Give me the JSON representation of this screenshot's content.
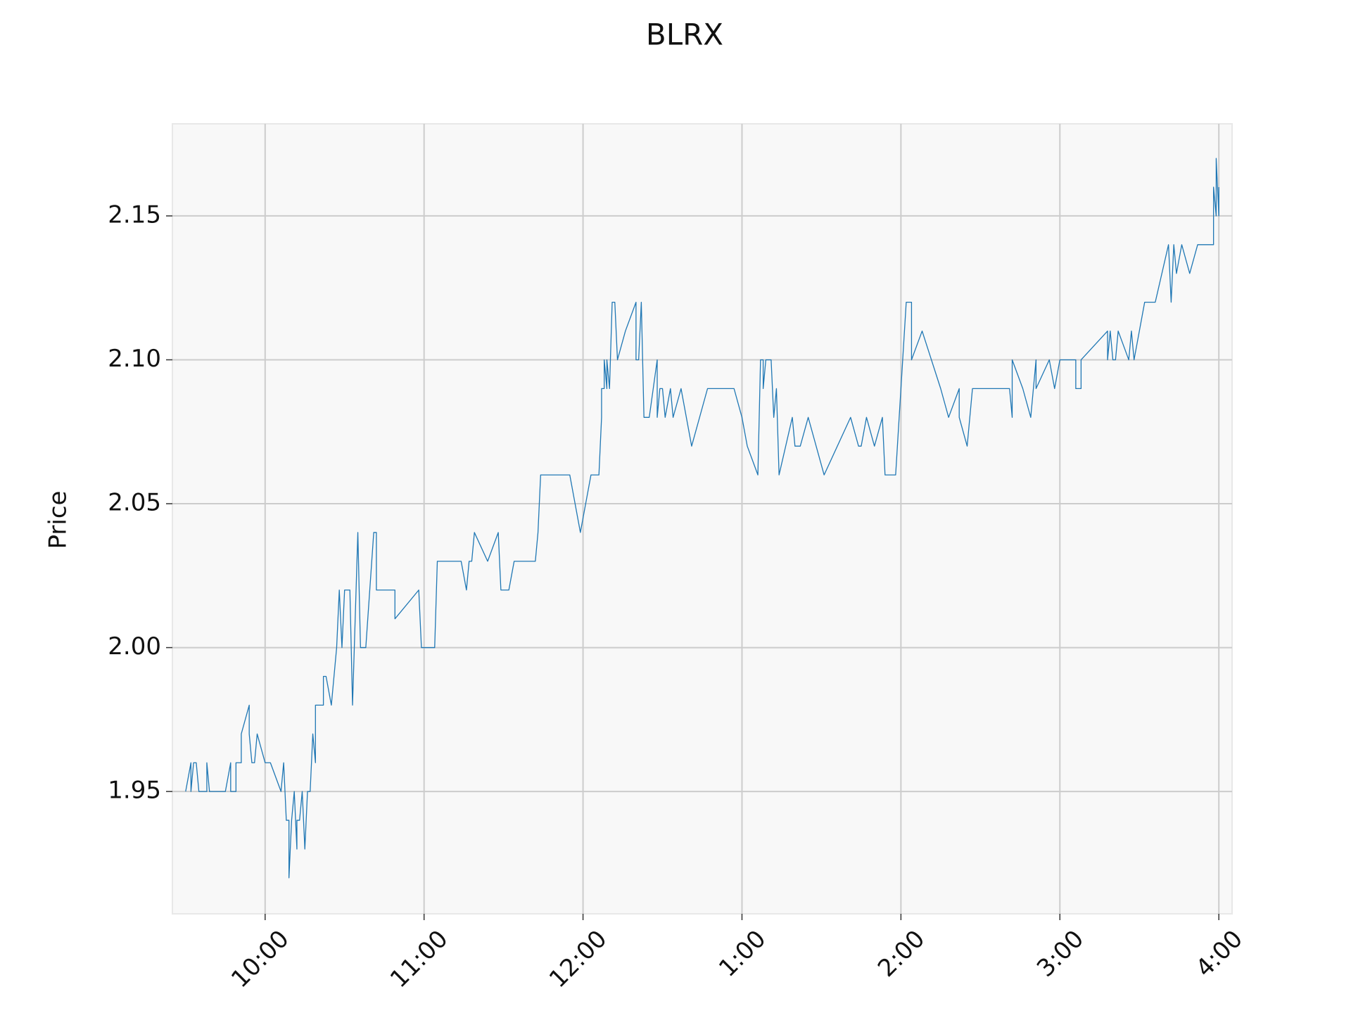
{
  "chart_data": {
    "type": "line",
    "title": "BLRX",
    "ylabel": "Price",
    "color": "#1f77b4",
    "grid": true,
    "x": [
      570,
      572,
      572,
      573,
      574,
      575,
      578,
      578,
      579,
      585,
      587,
      587,
      589,
      589,
      591,
      591,
      594,
      594,
      595,
      596,
      597,
      600,
      602,
      606,
      607,
      608,
      609,
      609,
      610,
      611,
      612,
      612,
      613,
      614,
      615,
      616,
      617,
      618,
      619,
      619,
      622,
      622,
      623,
      625,
      627,
      628,
      629,
      630,
      632,
      633,
      635,
      636,
      638,
      641,
      642,
      642,
      649,
      649,
      658,
      659,
      664,
      665,
      674,
      676,
      677,
      678,
      679,
      684,
      688,
      689,
      692,
      694,
      702,
      703,
      704,
      715,
      717,
      719,
      723,
      726,
      727,
      727,
      728,
      728,
      729,
      729,
      730,
      731,
      732,
      733,
      736,
      740,
      740,
      741,
      742,
      743,
      745,
      748,
      748,
      749,
      750,
      751,
      753,
      754,
      757,
      761,
      767,
      777,
      780,
      782,
      786,
      787,
      788,
      788,
      789,
      791,
      792,
      793,
      794,
      799,
      800,
      802,
      805,
      811,
      821,
      824,
      825,
      827,
      830,
      833,
      834,
      838,
      842,
      844,
      844,
      848,
      855,
      858,
      862,
      862,
      865,
      867,
      881,
      882,
      882,
      886,
      889,
      891,
      891,
      896,
      898,
      900,
      906,
      906,
      908,
      908,
      918,
      918,
      919,
      919,
      920,
      921,
      922,
      926,
      927,
      928,
      932,
      936,
      941,
      942,
      943,
      944,
      944,
      946,
      949,
      952,
      958,
      958,
      959,
      959,
      960,
      960
    ],
    "values": [
      1.95,
      1.96,
      1.95,
      1.96,
      1.96,
      1.95,
      1.95,
      1.96,
      1.95,
      1.95,
      1.96,
      1.95,
      1.95,
      1.96,
      1.96,
      1.97,
      1.98,
      1.97,
      1.96,
      1.96,
      1.97,
      1.96,
      1.96,
      1.95,
      1.96,
      1.94,
      1.94,
      1.92,
      1.94,
      1.95,
      1.93,
      1.94,
      1.94,
      1.95,
      1.93,
      1.95,
      1.95,
      1.97,
      1.96,
      1.98,
      1.98,
      1.99,
      1.99,
      1.98,
      2.0,
      2.02,
      2.0,
      2.02,
      2.02,
      1.98,
      2.04,
      2.0,
      2.0,
      2.04,
      2.04,
      2.02,
      2.02,
      2.01,
      2.02,
      2.0,
      2.0,
      2.03,
      2.03,
      2.02,
      2.03,
      2.03,
      2.04,
      2.03,
      2.04,
      2.02,
      2.02,
      2.03,
      2.03,
      2.04,
      2.06,
      2.06,
      2.05,
      2.04,
      2.06,
      2.06,
      2.08,
      2.09,
      2.09,
      2.1,
      2.09,
      2.1,
      2.09,
      2.12,
      2.12,
      2.1,
      2.11,
      2.12,
      2.1,
      2.1,
      2.12,
      2.08,
      2.08,
      2.1,
      2.08,
      2.09,
      2.09,
      2.08,
      2.09,
      2.08,
      2.09,
      2.07,
      2.09,
      2.09,
      2.08,
      2.07,
      2.06,
      2.1,
      2.1,
      2.09,
      2.1,
      2.1,
      2.08,
      2.09,
      2.06,
      2.08,
      2.07,
      2.07,
      2.08,
      2.06,
      2.08,
      2.07,
      2.07,
      2.08,
      2.07,
      2.08,
      2.06,
      2.06,
      2.12,
      2.12,
      2.1,
      2.11,
      2.09,
      2.08,
      2.09,
      2.08,
      2.07,
      2.09,
      2.09,
      2.08,
      2.1,
      2.09,
      2.08,
      2.1,
      2.09,
      2.1,
      2.09,
      2.1,
      2.1,
      2.09,
      2.09,
      2.1,
      2.11,
      2.1,
      2.11,
      2.11,
      2.1,
      2.1,
      2.11,
      2.1,
      2.11,
      2.1,
      2.12,
      2.12,
      2.14,
      2.12,
      2.14,
      2.13,
      2.13,
      2.14,
      2.13,
      2.14,
      2.14,
      2.16,
      2.15,
      2.17,
      2.15,
      2.16
    ],
    "xlim": [
      565,
      965
    ],
    "xticks": [
      {
        "value": 600,
        "label": "10:00"
      },
      {
        "value": 660,
        "label": "11:00"
      },
      {
        "value": 720,
        "label": "12:00"
      },
      {
        "value": 780,
        "label": "1:00"
      },
      {
        "value": 840,
        "label": "2:00"
      },
      {
        "value": 900,
        "label": "3:00"
      },
      {
        "value": 960,
        "label": "4:00"
      }
    ],
    "ylim": [
      1.9075,
      2.182
    ],
    "yticks": [
      1.95,
      {
        "value": 2,
        "label": "2.00"
      },
      2.05,
      {
        "value": 2.1,
        "label": "2.10"
      },
      2.15
    ]
  }
}
